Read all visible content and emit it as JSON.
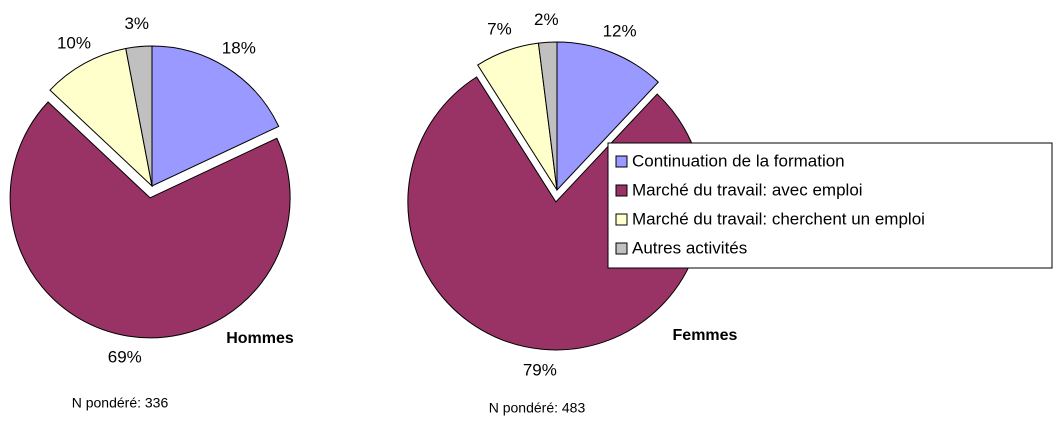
{
  "chart_data": [
    {
      "type": "pie",
      "title": "Hommes",
      "note": "N pondéré: 336",
      "categories": [
        "Continuation de la formation",
        "Marché du travail: avec emploi",
        "Marché du travail: cherchent un emploi",
        "Autres activités"
      ],
      "values": [
        18,
        69,
        10,
        3
      ],
      "value_labels": [
        "18%",
        "69%",
        "10%",
        "3%"
      ],
      "colors": [
        "#9999ff",
        "#993366",
        "#ffffcc",
        "#c0c0c0"
      ]
    },
    {
      "type": "pie",
      "title": "Femmes",
      "note": "N pondéré: 483",
      "categories": [
        "Continuation de la formation",
        "Marché du travail: avec emploi",
        "Marché du travail: cherchent un emploi",
        "Autres activités"
      ],
      "values": [
        12,
        79,
        7,
        2
      ],
      "value_labels": [
        "12%",
        "79%",
        "7%",
        "2%"
      ],
      "colors": [
        "#9999ff",
        "#993366",
        "#ffffcc",
        "#c0c0c0"
      ],
      "legend": "right"
    }
  ]
}
